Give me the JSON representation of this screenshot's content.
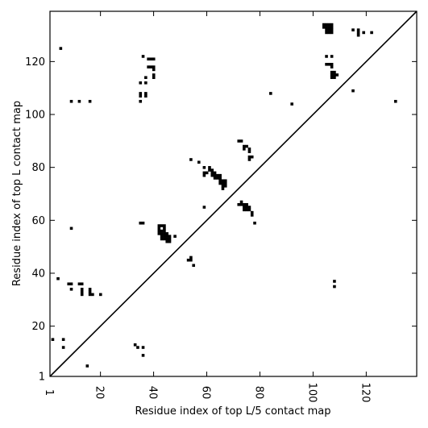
{
  "chart_data": {
    "type": "scatter",
    "xlabel": "Residue index of top L/5 contact map",
    "ylabel": "Residue index of top L contact map",
    "xlim": [
      1,
      139
    ],
    "ylim": [
      1,
      139
    ],
    "x_ticks": [
      1,
      20,
      40,
      60,
      80,
      100,
      120
    ],
    "y_ticks": [
      1,
      20,
      40,
      60,
      80,
      100,
      120
    ],
    "x_tick_rotation": 90,
    "grid": false,
    "diagonal": {
      "from": [
        1,
        1
      ],
      "to": [
        139,
        139
      ]
    },
    "marker": "square",
    "color": "#000000",
    "series": [
      {
        "name": "",
        "points": [
          [
            2,
            15
          ],
          [
            6,
            15
          ],
          [
            6,
            12
          ],
          [
            5,
            125
          ],
          [
            4,
            38
          ],
          [
            8,
            36
          ],
          [
            9,
            36
          ],
          [
            9,
            34
          ],
          [
            12,
            36
          ],
          [
            13,
            36
          ],
          [
            13,
            34
          ],
          [
            13,
            33
          ],
          [
            13,
            32
          ],
          [
            16,
            34
          ],
          [
            16,
            33
          ],
          [
            16,
            32
          ],
          [
            17,
            32
          ],
          [
            20,
            32
          ],
          [
            15,
            5
          ],
          [
            9,
            57
          ],
          [
            9,
            105
          ],
          [
            12,
            105
          ],
          [
            16,
            105
          ],
          [
            33,
            13
          ],
          [
            34,
            12
          ],
          [
            36,
            12
          ],
          [
            36,
            9
          ],
          [
            35,
            59
          ],
          [
            36,
            59
          ],
          [
            35,
            112
          ],
          [
            37,
            112
          ],
          [
            35,
            108
          ],
          [
            35,
            107
          ],
          [
            37,
            108
          ],
          [
            37,
            107
          ],
          [
            35,
            105
          ],
          [
            36,
            122
          ],
          [
            37,
            114
          ],
          [
            38,
            118
          ],
          [
            39,
            118
          ],
          [
            40,
            118
          ],
          [
            40,
            117
          ],
          [
            40,
            115
          ],
          [
            40,
            114
          ],
          [
            38,
            121
          ],
          [
            39,
            121
          ],
          [
            40,
            121
          ],
          [
            42,
            58
          ],
          [
            43,
            58
          ],
          [
            44,
            58
          ],
          [
            42,
            57
          ],
          [
            44,
            57
          ],
          [
            42,
            56
          ],
          [
            43,
            56
          ],
          [
            44,
            56
          ],
          [
            42,
            55
          ],
          [
            43,
            55
          ],
          [
            44,
            55
          ],
          [
            45,
            55
          ],
          [
            43,
            54
          ],
          [
            44,
            54
          ],
          [
            45,
            54
          ],
          [
            46,
            54
          ],
          [
            48,
            54
          ],
          [
            43,
            53
          ],
          [
            44,
            53
          ],
          [
            45,
            53
          ],
          [
            46,
            53
          ],
          [
            45,
            52
          ],
          [
            46,
            52
          ],
          [
            53,
            45
          ],
          [
            54,
            45
          ],
          [
            54,
            46
          ],
          [
            55,
            43
          ],
          [
            54,
            83
          ],
          [
            57,
            82
          ],
          [
            59,
            80
          ],
          [
            59,
            78
          ],
          [
            59,
            77
          ],
          [
            60,
            78
          ],
          [
            61,
            80
          ],
          [
            61,
            79
          ],
          [
            62,
            79
          ],
          [
            62,
            78
          ],
          [
            62,
            77
          ],
          [
            63,
            78
          ],
          [
            63,
            77
          ],
          [
            63,
            76
          ],
          [
            64,
            77
          ],
          [
            64,
            76
          ],
          [
            65,
            77
          ],
          [
            65,
            76
          ],
          [
            65,
            75
          ],
          [
            65,
            74
          ],
          [
            66,
            75
          ],
          [
            66,
            74
          ],
          [
            66,
            73
          ],
          [
            66,
            72
          ],
          [
            67,
            75
          ],
          [
            67,
            74
          ],
          [
            67,
            73
          ],
          [
            59,
            65
          ],
          [
            72,
            90
          ],
          [
            73,
            90
          ],
          [
            74,
            88
          ],
          [
            74,
            87
          ],
          [
            75,
            88
          ],
          [
            76,
            87
          ],
          [
            76,
            86
          ],
          [
            76,
            84
          ],
          [
            77,
            84
          ],
          [
            76,
            83
          ],
          [
            72,
            66
          ],
          [
            73,
            66
          ],
          [
            73,
            67
          ],
          [
            74,
            66
          ],
          [
            74,
            65
          ],
          [
            75,
            66
          ],
          [
            75,
            65
          ],
          [
            74,
            64
          ],
          [
            75,
            64
          ],
          [
            76,
            64
          ],
          [
            76,
            65
          ],
          [
            77,
            63
          ],
          [
            77,
            62
          ],
          [
            78,
            59
          ],
          [
            84,
            108
          ],
          [
            92,
            104
          ],
          [
            104,
            134
          ],
          [
            105,
            134
          ],
          [
            106,
            134
          ],
          [
            107,
            134
          ],
          [
            104,
            133
          ],
          [
            105,
            133
          ],
          [
            106,
            133
          ],
          [
            107,
            133
          ],
          [
            105,
            132
          ],
          [
            106,
            132
          ],
          [
            107,
            132
          ],
          [
            105,
            131
          ],
          [
            106,
            131
          ],
          [
            107,
            131
          ],
          [
            105,
            122
          ],
          [
            107,
            122
          ],
          [
            105,
            119
          ],
          [
            106,
            119
          ],
          [
            107,
            119
          ],
          [
            107,
            118
          ],
          [
            107,
            116
          ],
          [
            108,
            116
          ],
          [
            107,
            115
          ],
          [
            108,
            115
          ],
          [
            109,
            115
          ],
          [
            107,
            114
          ],
          [
            108,
            114
          ],
          [
            108,
            37
          ],
          [
            108,
            35
          ],
          [
            115,
            132
          ],
          [
            117,
            132
          ],
          [
            117,
            131
          ],
          [
            117,
            130
          ],
          [
            119,
            131
          ],
          [
            122,
            131
          ],
          [
            115,
            109
          ],
          [
            131,
            105
          ]
        ]
      }
    ]
  }
}
